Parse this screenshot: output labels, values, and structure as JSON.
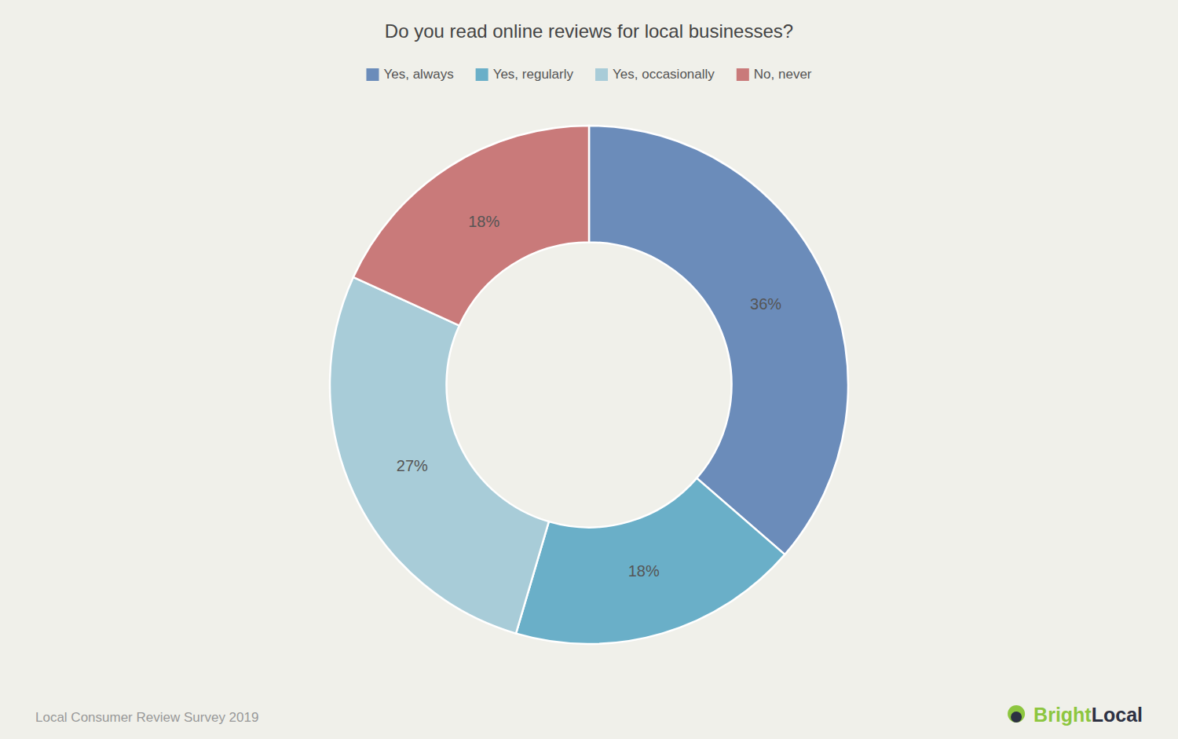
{
  "chart_data": {
    "type": "donut",
    "title": "Do you read online reviews for local businesses?",
    "categories": [
      "Yes, always",
      "Yes, regularly",
      "Yes, occasionally",
      "No, never"
    ],
    "values": [
      36,
      18,
      27,
      18
    ],
    "value_labels": [
      "36%",
      "18%",
      "27%",
      "18%"
    ],
    "colors": [
      "#6b8cba",
      "#6aafc8",
      "#a8ccd8",
      "#c97a7a"
    ],
    "data_labels": true,
    "legend": "top",
    "annotations": [
      {
        "text": "Local Consumer Review Survey 2019"
      },
      {
        "text": "Bright",
        "color": "#8dc63f"
      },
      {
        "text": "Local",
        "color": "#2d3142"
      }
    ]
  }
}
